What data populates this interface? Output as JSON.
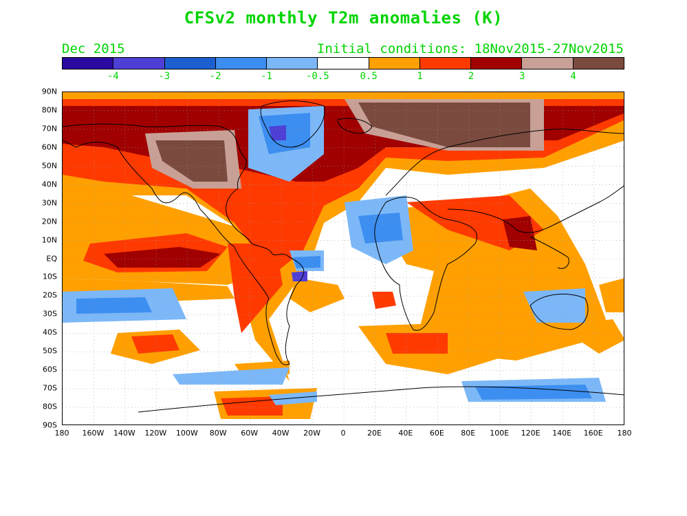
{
  "title": "CFSv2 monthly T2m anomalies (K)",
  "valid_month": "Dec 2015",
  "initial_conditions": "Initial conditions: 18Nov2015-27Nov2015",
  "colorbar": {
    "colors": [
      "#2a0aa0",
      "#4e3fd6",
      "#1c5fd0",
      "#3c8ef0",
      "#7cb8f8",
      "#ffffff",
      "#ffa000",
      "#ff3a00",
      "#a00000",
      "#c8a096",
      "#7a4a3e"
    ],
    "labels": [
      "-4",
      "-3",
      "-2",
      "-1",
      "-0.5",
      "0.5",
      "1",
      "2",
      "3",
      "4"
    ]
  },
  "lat_labels": [
    "90N",
    "80N",
    "70N",
    "60N",
    "50N",
    "40N",
    "30N",
    "20N",
    "10N",
    "EQ",
    "10S",
    "20S",
    "30S",
    "40S",
    "50S",
    "60S",
    "70S",
    "80S",
    "90S"
  ],
  "lon_labels": [
    "180",
    "160W",
    "140W",
    "120W",
    "100W",
    "80W",
    "60W",
    "40W",
    "20W",
    "0",
    "20E",
    "40E",
    "60E",
    "80E",
    "100E",
    "120E",
    "140E",
    "160E",
    "180"
  ]
}
